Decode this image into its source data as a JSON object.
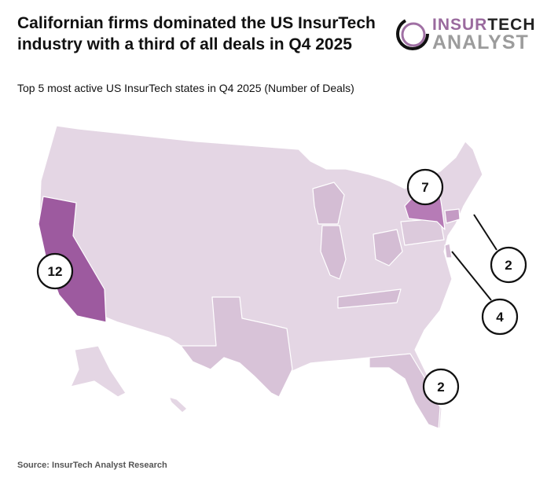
{
  "title": "Californian firms dominated the US InsurTech industry with a third of all deals in Q4 2025",
  "logo": {
    "line1_a": "INSUR",
    "line1_b": "TECH",
    "line2": "ANALYST"
  },
  "subtitle": "Top 5 most active US InsurTech states in Q4 2025 (Number of Deals)",
  "source": "Source: InsurTech Analyst Research",
  "colors": {
    "base": "#e4d6e4",
    "mid": "#d4bdd4",
    "new_york": "#b67bb6",
    "california": "#9d5a9f",
    "border": "#ffffff"
  },
  "callouts": [
    {
      "state": "California",
      "value": "12"
    },
    {
      "state": "New York",
      "value": "7"
    },
    {
      "state": "Connecticut",
      "value": "2"
    },
    {
      "state": "Delaware",
      "value": "4"
    },
    {
      "state": "Florida",
      "value": "2"
    }
  ]
}
